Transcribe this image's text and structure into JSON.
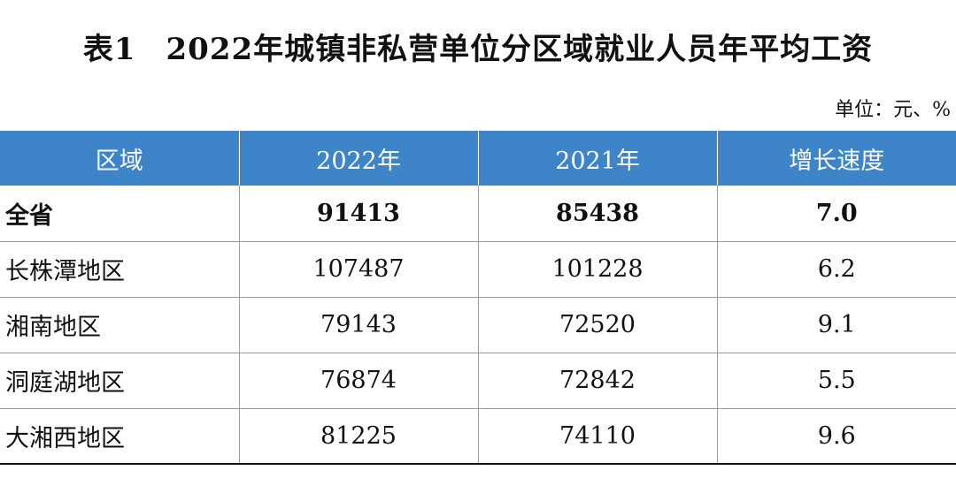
{
  "title": {
    "prefix": "表1",
    "text": "2022年城镇非私营单位分区域就业人员年平均工资"
  },
  "unit": "单位：元、%",
  "table": {
    "headers": [
      "区域",
      "2022年",
      "2021年",
      "增长速度"
    ],
    "rows": [
      {
        "region": "全省",
        "y2022": "91413",
        "y2021": "85438",
        "growth": "7.0"
      },
      {
        "region": "长株潭地区",
        "y2022": "107487",
        "y2021": "101228",
        "growth": "6.2"
      },
      {
        "region": "湘南地区",
        "y2022": "79143",
        "y2021": "72520",
        "growth": "9.1"
      },
      {
        "region": "洞庭湖地区",
        "y2022": "76874",
        "y2021": "72842",
        "growth": "5.5"
      },
      {
        "region": "大湘西地区",
        "y2022": "81225",
        "y2021": "74110",
        "growth": "9.6"
      }
    ]
  },
  "colors": {
    "header_bg": "#3d84c9",
    "header_text": "#ffffff"
  }
}
